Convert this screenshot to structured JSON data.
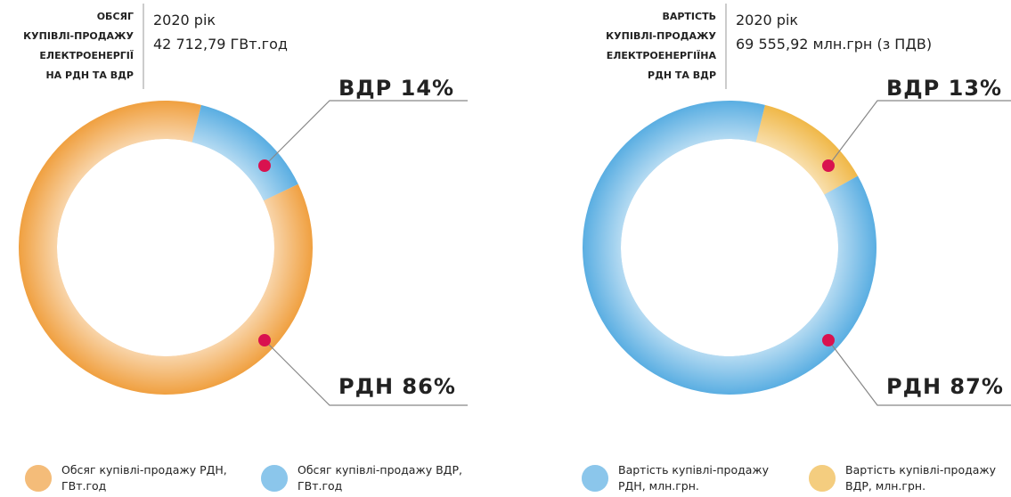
{
  "chart_data": [
    {
      "type": "donut",
      "title": [
        "ОБСЯГ",
        "КУПІВЛІ-ПРОДАЖУ",
        "ЕЛЕКТРОЕНЕРГІЇ",
        "НА РДН ТА ВДР"
      ],
      "subtitle": [
        "2020 рік",
        "42 712,79 ГВт.год"
      ],
      "categories": [
        "РДН",
        "ВДР"
      ],
      "values": [
        86,
        14
      ],
      "value_labels": [
        "86%",
        "14%"
      ],
      "colors": [
        "#f0a040",
        "#5aaee2"
      ],
      "legend": [
        "Обсяг купівлі-продажу РДН, ГВт.год",
        "Обсяг купівлі-продажу ВДР, ГВт.год"
      ]
    },
    {
      "type": "donut",
      "title": [
        "ВАРТІСТЬ",
        "КУПІВЛІ-ПРОДАЖУ",
        "ЕЛЕКТРОЕНЕРГІЇНА",
        "РДН ТА ВДР"
      ],
      "subtitle": [
        "2020 рік",
        "69 555,92 млн.грн (з ПДВ)"
      ],
      "categories": [
        "РДН",
        "ВДР"
      ],
      "values": [
        87,
        13
      ],
      "value_labels": [
        "87%",
        "13%"
      ],
      "colors": [
        "#5aaee2",
        "#f0b848"
      ],
      "legend": [
        "Вартість купівлі-продажу РДН, млн.грн.",
        "Вартість купівлі-продажу ВДР, млн.грн."
      ]
    }
  ]
}
